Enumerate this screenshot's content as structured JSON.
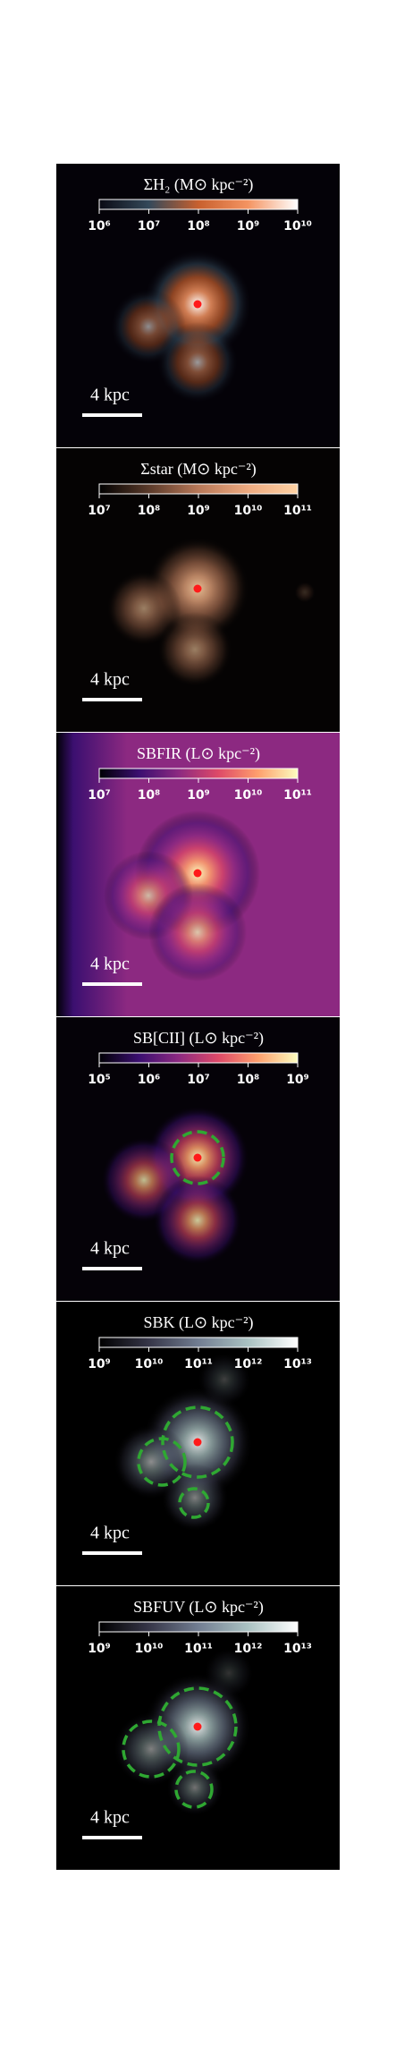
{
  "chart_data": [
    {
      "type": "image",
      "title": "ΣH₂ (M⊙ kpc⁻²)",
      "log_scale": true,
      "xlim": [
        1000000,
        10000000000
      ],
      "xticks": [
        {
          "value": 1000000,
          "label": "10⁶"
        },
        {
          "value": 10000000,
          "label": "10⁷"
        },
        {
          "value": 100000000,
          "label": "10⁸"
        },
        {
          "value": 1000000000,
          "label": "10⁹"
        },
        {
          "value": 10000000000,
          "label": "10¹⁰"
        }
      ],
      "colormap": [
        "#0a0a14",
        "#34495a",
        "#c8602e",
        "#f49462",
        "#ffffff"
      ],
      "scale_bar": "4 kpc"
    },
    {
      "type": "image",
      "title": "Σstar (M⊙ kpc⁻²)",
      "log_scale": true,
      "xlim": [
        10000000,
        100000000000
      ],
      "xticks": [
        {
          "value": 10000000,
          "label": "10⁷"
        },
        {
          "value": 100000000,
          "label": "10⁸"
        },
        {
          "value": 1000000000,
          "label": "10⁹"
        },
        {
          "value": 10000000000,
          "label": "10¹⁰"
        },
        {
          "value": 100000000000,
          "label": "10¹¹"
        }
      ],
      "colormap": [
        "#000000",
        "#5a3a2a",
        "#b87858",
        "#eeaa80",
        "#ffd2a4"
      ],
      "scale_bar": "4 kpc"
    },
    {
      "type": "image",
      "title": "SBFIR (L⊙ kpc⁻²)",
      "log_scale": true,
      "xlim": [
        10000000,
        100000000000
      ],
      "xticks": [
        {
          "value": 10000000,
          "label": "10⁷"
        },
        {
          "value": 100000000,
          "label": "10⁸"
        },
        {
          "value": 1000000000,
          "label": "10⁹"
        },
        {
          "value": 10000000000,
          "label": "10¹⁰"
        },
        {
          "value": 100000000000,
          "label": "10¹¹"
        }
      ],
      "colormap": [
        "#000004",
        "#3b0f70",
        "#8c2981",
        "#de4968",
        "#fe9f6d",
        "#fcfdbf"
      ],
      "scale_bar": "4 kpc"
    },
    {
      "type": "image",
      "title": "SB[CII] (L⊙ kpc⁻²)",
      "log_scale": true,
      "xlim": [
        100000,
        1000000000
      ],
      "xticks": [
        {
          "value": 100000,
          "label": "10⁵"
        },
        {
          "value": 1000000,
          "label": "10⁶"
        },
        {
          "value": 10000000,
          "label": "10⁷"
        },
        {
          "value": 100000000,
          "label": "10⁸"
        },
        {
          "value": 1000000000,
          "label": "10⁹"
        }
      ],
      "colormap": [
        "#000004",
        "#3b0f70",
        "#8c2981",
        "#de4968",
        "#fe9f6d",
        "#fcfdbf"
      ],
      "scale_bar": "4 kpc"
    },
    {
      "type": "image",
      "title": "SBK (L⊙ kpc⁻²)",
      "log_scale": true,
      "xlim": [
        1000000000,
        10000000000000
      ],
      "xticks": [
        {
          "value": 1000000000,
          "label": "10⁹"
        },
        {
          "value": 10000000000,
          "label": "10¹⁰"
        },
        {
          "value": 100000000000,
          "label": "10¹¹"
        },
        {
          "value": 1000000000000,
          "label": "10¹²"
        },
        {
          "value": 10000000000000,
          "label": "10¹³"
        }
      ],
      "colormap": [
        "#000000",
        "#363648",
        "#727e92",
        "#aac2c2",
        "#ffffff"
      ],
      "scale_bar": "4 kpc"
    },
    {
      "type": "image",
      "title": "SBFUV (L⊙ kpc⁻²)",
      "log_scale": true,
      "xlim": [
        1000000000,
        10000000000000
      ],
      "xticks": [
        {
          "value": 1000000000,
          "label": "10⁹"
        },
        {
          "value": 10000000000,
          "label": "10¹⁰"
        },
        {
          "value": 100000000000,
          "label": "10¹¹"
        },
        {
          "value": 1000000000000,
          "label": "10¹²"
        },
        {
          "value": 10000000000000,
          "label": "10¹³"
        }
      ],
      "colormap": [
        "#000000",
        "#363648",
        "#727e92",
        "#aac2c2",
        "#ffffff"
      ],
      "scale_bar": "4 kpc"
    }
  ]
}
